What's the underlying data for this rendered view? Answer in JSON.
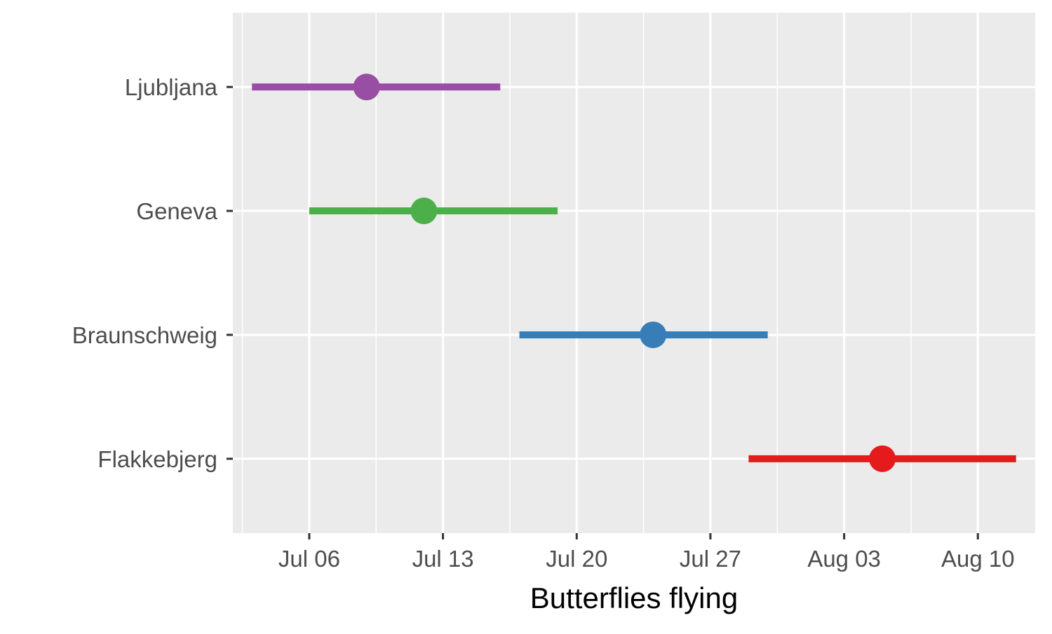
{
  "chart_data": {
    "type": "range_dot",
    "title": "",
    "xlabel": "Butterflies flying",
    "ylabel": "",
    "x_type": "date",
    "year": "2019",
    "xlim": [
      "2019-07-02",
      "2019-08-13"
    ],
    "x_ticks": [
      {
        "date": "2019-07-06",
        "label": "Jul 06"
      },
      {
        "date": "2019-07-13",
        "label": "Jul 13"
      },
      {
        "date": "2019-07-20",
        "label": "Jul 20"
      },
      {
        "date": "2019-07-27",
        "label": "Jul 27"
      },
      {
        "date": "2019-08-03",
        "label": "Aug 03"
      },
      {
        "date": "2019-08-10",
        "label": "Aug 10"
      }
    ],
    "grid": true,
    "panel_background": "#ebebeb",
    "categories": [
      "Ljubljana",
      "Geneva",
      "Braunschweig",
      "Flakkebjerg"
    ],
    "series": [
      {
        "category": "Ljubljana",
        "start": "2019-07-03",
        "mid": "2019-07-09",
        "end": "2019-07-16",
        "color": "#984ea3"
      },
      {
        "category": "Geneva",
        "start": "2019-07-06",
        "mid": "2019-07-12",
        "end": "2019-07-19",
        "color": "#4daf4a"
      },
      {
        "category": "Braunschweig",
        "start": "2019-07-17",
        "mid": "2019-07-24",
        "end": "2019-07-30",
        "color": "#377eb8"
      },
      {
        "category": "Flakkebjerg",
        "start": "2019-07-29",
        "mid": "2019-08-05",
        "end": "2019-08-12",
        "color": "#e41a1c"
      }
    ]
  }
}
